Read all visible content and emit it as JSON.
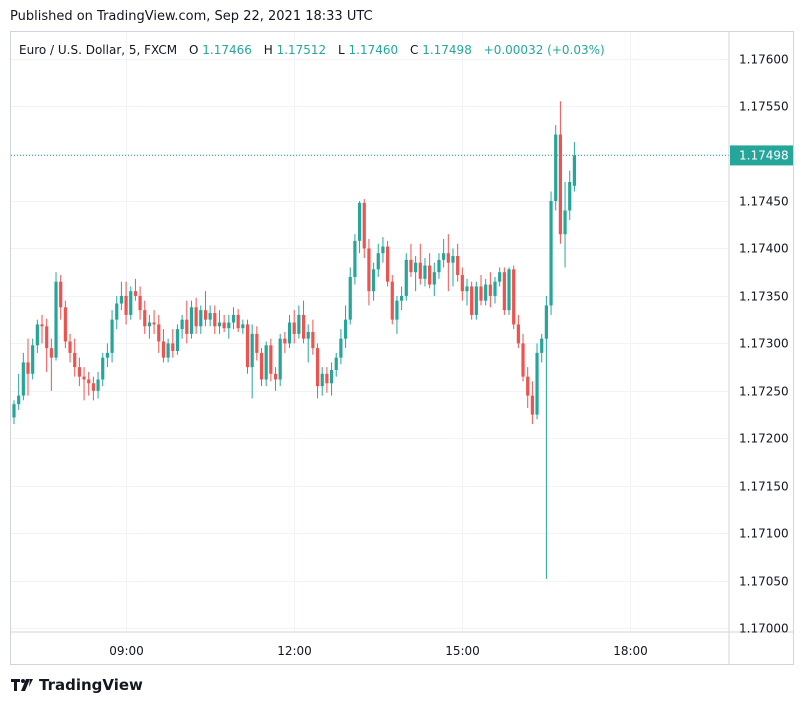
{
  "header": {
    "published": "Published on TradingView.com, Sep 22, 2021 18:33 UTC"
  },
  "footer": {
    "brand": "TradingView",
    "logo_icon": "tradingview-logo-icon"
  },
  "colors": {
    "up": "#26a69a",
    "down": "#ef5350",
    "grid": "#f0f3fa",
    "border": "#d1d4dc",
    "text": "#131722"
  },
  "chart_data": {
    "type": "candlestick",
    "symbol": "Euro / U.S. Dollar, 5, FXCM",
    "legend": {
      "open_label": "O",
      "open": "1.17466",
      "high_label": "H",
      "high": "1.17512",
      "low_label": "L",
      "low": "1.17460",
      "close_label": "C",
      "close": "1.17498",
      "change": "+0.00032 (+0.03%)"
    },
    "last_price": "1.17498",
    "y_ticks": [
      "1.17600",
      "1.17550",
      "1.17500",
      "1.17450",
      "1.17400",
      "1.17350",
      "1.17300",
      "1.17250",
      "1.17200",
      "1.17150",
      "1.17100",
      "1.17050",
      "1.17000"
    ],
    "ylim": [
      1.16996,
      1.17628
    ],
    "x_ticks": [
      {
        "label": "09:00",
        "index": 24
      },
      {
        "label": "12:00",
        "index": 60
      },
      {
        "label": "15:00",
        "index": 96
      },
      {
        "label": "18:00",
        "index": 132
      }
    ],
    "candles": [
      [
        1.17222,
        1.1724,
        1.17215,
        1.17236
      ],
      [
        1.17236,
        1.17268,
        1.1723,
        1.17245
      ],
      [
        1.17245,
        1.1729,
        1.1724,
        1.1728
      ],
      [
        1.1728,
        1.17305,
        1.17245,
        1.17268
      ],
      [
        1.17268,
        1.17305,
        1.17262,
        1.17298
      ],
      [
        1.17298,
        1.17325,
        1.1729,
        1.1732
      ],
      [
        1.1732,
        1.1733,
        1.173,
        1.17318
      ],
      [
        1.17318,
        1.17326,
        1.1727,
        1.17295
      ],
      [
        1.17295,
        1.17305,
        1.1725,
        1.17285
      ],
      [
        1.17285,
        1.17375,
        1.17282,
        1.17365
      ],
      [
        1.17365,
        1.17372,
        1.17325,
        1.17338
      ],
      [
        1.17338,
        1.17345,
        1.17295,
        1.17302
      ],
      [
        1.17302,
        1.1731,
        1.1728,
        1.1729
      ],
      [
        1.1729,
        1.17305,
        1.17265,
        1.17275
      ],
      [
        1.17275,
        1.17285,
        1.17255,
        1.17265
      ],
      [
        1.17265,
        1.17275,
        1.1724,
        1.17262
      ],
      [
        1.17262,
        1.1727,
        1.17245,
        1.17258
      ],
      [
        1.17258,
        1.17265,
        1.1724,
        1.1725
      ],
      [
        1.1725,
        1.1727,
        1.17242,
        1.17262
      ],
      [
        1.17262,
        1.1729,
        1.17255,
        1.17285
      ],
      [
        1.17285,
        1.173,
        1.17275,
        1.1729
      ],
      [
        1.1729,
        1.17335,
        1.1728,
        1.17325
      ],
      [
        1.17325,
        1.1735,
        1.17315,
        1.17342
      ],
      [
        1.17342,
        1.17365,
        1.17335,
        1.1735
      ],
      [
        1.1735,
        1.17365,
        1.1732,
        1.1733
      ],
      [
        1.1733,
        1.1736,
        1.17325,
        1.17355
      ],
      [
        1.17355,
        1.17368,
        1.17345,
        1.1735
      ],
      [
        1.1735,
        1.1736,
        1.17325,
        1.17335
      ],
      [
        1.17335,
        1.17345,
        1.1731,
        1.17318
      ],
      [
        1.17318,
        1.1733,
        1.17305,
        1.17322
      ],
      [
        1.17322,
        1.17335,
        1.1731,
        1.1732
      ],
      [
        1.1732,
        1.1733,
        1.1729,
        1.17302
      ],
      [
        1.17302,
        1.17315,
        1.1728,
        1.17285
      ],
      [
        1.17285,
        1.17305,
        1.1728,
        1.173
      ],
      [
        1.173,
        1.17315,
        1.17285,
        1.17292
      ],
      [
        1.17292,
        1.1732,
        1.17288,
        1.17315
      ],
      [
        1.17315,
        1.1733,
        1.17305,
        1.17325
      ],
      [
        1.17325,
        1.17345,
        1.173,
        1.1731
      ],
      [
        1.1731,
        1.17345,
        1.17305,
        1.17338
      ],
      [
        1.17338,
        1.17348,
        1.1731,
        1.17318
      ],
      [
        1.17318,
        1.1734,
        1.1731,
        1.17335
      ],
      [
        1.17335,
        1.17355,
        1.17318,
        1.17325
      ],
      [
        1.17325,
        1.1734,
        1.17318,
        1.17332
      ],
      [
        1.17332,
        1.1734,
        1.1731,
        1.17318
      ],
      [
        1.17318,
        1.17335,
        1.1731,
        1.17322
      ],
      [
        1.17322,
        1.1733,
        1.17312,
        1.17316
      ],
      [
        1.17316,
        1.1733,
        1.17305,
        1.17322
      ],
      [
        1.17322,
        1.17338,
        1.17315,
        1.1733
      ],
      [
        1.1733,
        1.17336,
        1.17312,
        1.17316
      ],
      [
        1.17316,
        1.17325,
        1.1731,
        1.1732
      ],
      [
        1.1732,
        1.17325,
        1.17268,
        1.17275
      ],
      [
        1.17275,
        1.1732,
        1.17242,
        1.1731
      ],
      [
        1.1731,
        1.17318,
        1.17282,
        1.1729
      ],
      [
        1.1729,
        1.17295,
        1.17255,
        1.17262
      ],
      [
        1.17262,
        1.17302,
        1.17255,
        1.17298
      ],
      [
        1.17298,
        1.17305,
        1.1726,
        1.17268
      ],
      [
        1.17268,
        1.17275,
        1.1725,
        1.17262
      ],
      [
        1.17262,
        1.1731,
        1.17255,
        1.17305
      ],
      [
        1.17305,
        1.17312,
        1.1729,
        1.173
      ],
      [
        1.173,
        1.1733,
        1.17295,
        1.17322
      ],
      [
        1.17322,
        1.17335,
        1.173,
        1.1731
      ],
      [
        1.1731,
        1.1734,
        1.17305,
        1.1733
      ],
      [
        1.1733,
        1.17345,
        1.173,
        1.17305
      ],
      [
        1.17305,
        1.1732,
        1.1728,
        1.17312
      ],
      [
        1.17312,
        1.17325,
        1.17288,
        1.17295
      ],
      [
        1.17295,
        1.173,
        1.17242,
        1.17255
      ],
      [
        1.17255,
        1.17275,
        1.17245,
        1.17268
      ],
      [
        1.17268,
        1.17275,
        1.17248,
        1.17258
      ],
      [
        1.17258,
        1.1728,
        1.17245,
        1.17272
      ],
      [
        1.17272,
        1.1729,
        1.17265,
        1.17285
      ],
      [
        1.17285,
        1.17315,
        1.17278,
        1.17305
      ],
      [
        1.17305,
        1.1734,
        1.17295,
        1.17325
      ],
      [
        1.17325,
        1.1738,
        1.1732,
        1.1737
      ],
      [
        1.1737,
        1.17415,
        1.17362,
        1.17408
      ],
      [
        1.17408,
        1.1745,
        1.17395,
        1.17448
      ],
      [
        1.17448,
        1.17452,
        1.1739,
        1.174
      ],
      [
        1.174,
        1.1741,
        1.1734,
        1.17355
      ],
      [
        1.17355,
        1.17385,
        1.17345,
        1.17378
      ],
      [
        1.17378,
        1.17405,
        1.1737,
        1.17395
      ],
      [
        1.17395,
        1.17412,
        1.17385,
        1.17402
      ],
      [
        1.17402,
        1.17408,
        1.1736,
        1.17365
      ],
      [
        1.17365,
        1.17372,
        1.1732,
        1.17325
      ],
      [
        1.17325,
        1.1735,
        1.1731,
        1.17345
      ],
      [
        1.17345,
        1.1736,
        1.17335,
        1.1735
      ],
      [
        1.1735,
        1.17395,
        1.17345,
        1.17388
      ],
      [
        1.17388,
        1.17405,
        1.1737,
        1.17375
      ],
      [
        1.17375,
        1.17392,
        1.17355,
        1.17385
      ],
      [
        1.17385,
        1.17405,
        1.17362,
        1.17368
      ],
      [
        1.17368,
        1.1739,
        1.1736,
        1.17382
      ],
      [
        1.17382,
        1.17395,
        1.17358,
        1.17362
      ],
      [
        1.17362,
        1.17385,
        1.1735,
        1.17375
      ],
      [
        1.17375,
        1.17395,
        1.17368,
        1.17388
      ],
      [
        1.17388,
        1.1741,
        1.1738,
        1.17395
      ],
      [
        1.17395,
        1.17415,
        1.17355,
        1.17385
      ],
      [
        1.17385,
        1.174,
        1.1736,
        1.17392
      ],
      [
        1.17392,
        1.17405,
        1.17365,
        1.17372
      ],
      [
        1.17372,
        1.1738,
        1.17345,
        1.17355
      ],
      [
        1.17355,
        1.17368,
        1.1734,
        1.1736
      ],
      [
        1.1736,
        1.17365,
        1.17325,
        1.1733
      ],
      [
        1.1733,
        1.17365,
        1.17325,
        1.1736
      ],
      [
        1.1736,
        1.17372,
        1.1734,
        1.17345
      ],
      [
        1.17345,
        1.17368,
        1.1734,
        1.17362
      ],
      [
        1.17362,
        1.17375,
        1.17338,
        1.1735
      ],
      [
        1.1735,
        1.1737,
        1.17342,
        1.17365
      ],
      [
        1.17365,
        1.1738,
        1.1736,
        1.17375
      ],
      [
        1.17375,
        1.1738,
        1.1733,
        1.17335
      ],
      [
        1.17335,
        1.1738,
        1.1733,
        1.17378
      ],
      [
        1.17378,
        1.17382,
        1.17315,
        1.1732
      ],
      [
        1.1732,
        1.1733,
        1.17295,
        1.173
      ],
      [
        1.173,
        1.1731,
        1.1726,
        1.17265
      ],
      [
        1.17265,
        1.17275,
        1.17232,
        1.17245
      ],
      [
        1.17245,
        1.1726,
        1.17215,
        1.17225
      ],
      [
        1.17225,
        1.173,
        1.1722,
        1.1729
      ],
      [
        1.1729,
        1.1731,
        1.1728,
        1.17305
      ],
      [
        1.17305,
        1.1735,
        1.17052,
        1.1734
      ],
      [
        1.1734,
        1.1746,
        1.1733,
        1.1745
      ],
      [
        1.1745,
        1.1753,
        1.1744,
        1.1752
      ],
      [
        1.1752,
        1.17555,
        1.17405,
        1.17415
      ],
      [
        1.17415,
        1.1747,
        1.1738,
        1.1744
      ],
      [
        1.1744,
        1.17482,
        1.1743,
        1.1747
      ],
      [
        1.17466,
        1.17512,
        1.1746,
        1.17498
      ]
    ]
  }
}
